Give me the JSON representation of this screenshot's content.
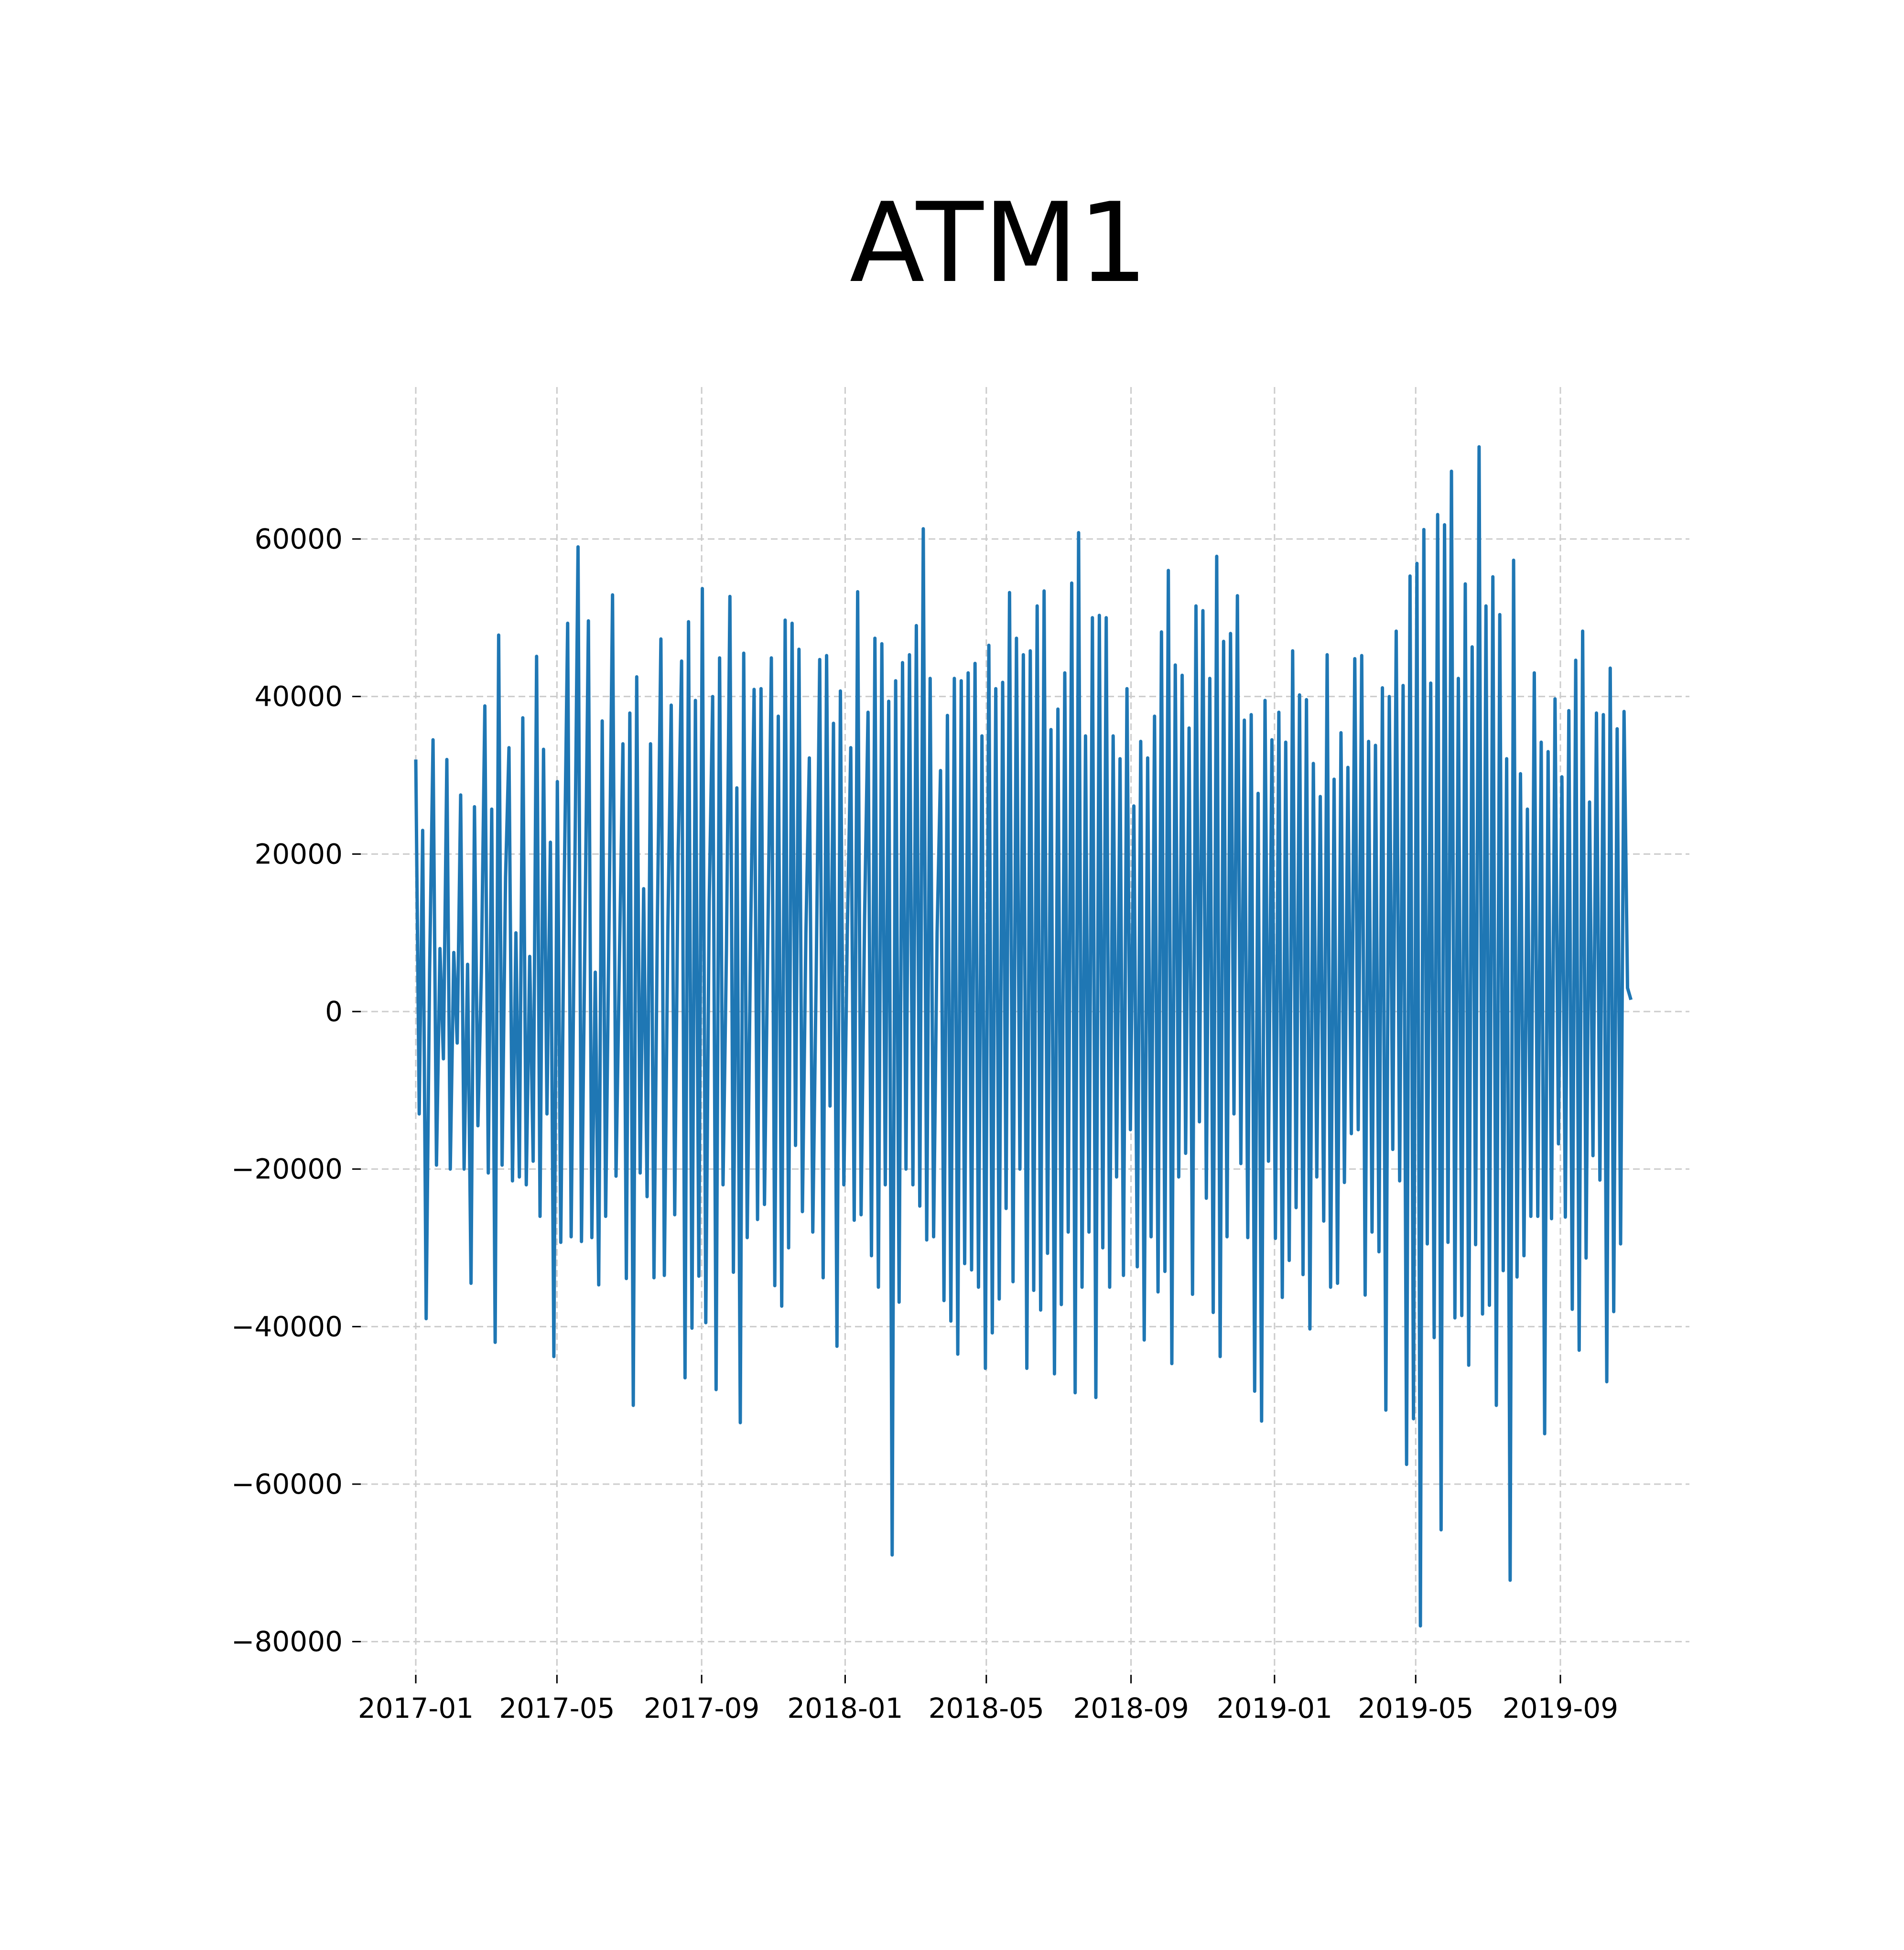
{
  "chart_data": {
    "type": "line",
    "title": "ATM1",
    "xlabel": "",
    "ylabel": "",
    "x_start": "2017-01-01",
    "x_end": "2019-10-31",
    "xlim": [
      "2017-01-01",
      "2019-10-31"
    ],
    "ylim": [
      -85000,
      75000
    ],
    "x_ticks": [
      "2017-01",
      "2017-05",
      "2017-09",
      "2018-01",
      "2018-05",
      "2018-09",
      "2019-01",
      "2019-05",
      "2019-09"
    ],
    "y_ticks": [
      60000,
      40000,
      20000,
      0,
      -20000,
      -40000,
      -60000,
      -80000
    ],
    "y_tick_labels": [
      "60000",
      "40000",
      "20000",
      "0",
      "−20000",
      "−40000",
      "−60000",
      "−80000"
    ],
    "grid": true,
    "legend": "none",
    "series": [
      {
        "color": "#1f77b4",
        "values": [
          32000,
          -13000,
          23000,
          -39000,
          5000,
          34500,
          -19500,
          8000,
          -6000,
          32000,
          -20000,
          7500,
          -4000,
          27500,
          -20000,
          6000,
          -34500,
          26000,
          -14500,
          5000,
          38800,
          -20500,
          25700,
          -42000,
          47800,
          -19500,
          17000,
          33500,
          -21500,
          10000,
          -21000,
          37300,
          -22000,
          7000,
          -19000,
          45100,
          -26000,
          33300,
          -13000,
          21500,
          -43800,
          29200,
          -29300,
          16000,
          49300,
          -28600,
          15000,
          59000,
          -29200,
          10000,
          49600,
          -28700,
          5000,
          -34700,
          36900,
          -26000,
          12000,
          52900,
          -20900,
          7000,
          34000,
          -33900,
          37900,
          -50000,
          42500,
          -20500,
          15600,
          -23500,
          34000,
          -33800,
          12000,
          47300,
          -33500,
          10000,
          38900,
          -25800,
          20000,
          44500,
          -46500,
          49500,
          -40200,
          39500,
          -33600,
          53700,
          -39500,
          14000,
          40000,
          -48000,
          44900,
          -22000,
          8000,
          52700,
          -33100,
          28400,
          -52200,
          45500,
          -28700,
          10000,
          40900,
          -26400,
          41000,
          -24500,
          10000,
          44900,
          -34800,
          37500,
          -37400,
          49700,
          -30000,
          49300,
          -17000,
          46000,
          -25400,
          10000,
          32200,
          -28000,
          5000,
          44700,
          -33800,
          45200,
          -12000,
          36600,
          -42500,
          40700,
          -22000,
          10000,
          33500,
          -26500,
          53300,
          -25800,
          12000,
          38000,
          -31000,
          47400,
          -35000,
          46700,
          -22000,
          39400,
          -69000,
          42000,
          -36900,
          44300,
          -20000,
          45300,
          -22000,
          49000,
          -24700,
          61300,
          -29000,
          42300,
          -28600,
          10000,
          30600,
          -36700,
          37600,
          -39300,
          42300,
          -43500,
          42000,
          -32000,
          43000,
          -32800,
          44200,
          -35000,
          35000,
          -45300,
          46500,
          -40800,
          41000,
          -36500,
          41800,
          -25000,
          53200,
          -34300,
          47400,
          -20000,
          45300,
          -45300,
          45800,
          -35400,
          51500,
          -37900,
          53400,
          -30700,
          35800,
          -46000,
          38400,
          -37200,
          43000,
          -28000,
          54400,
          -48400,
          60800,
          -35000,
          35000,
          -28000,
          50000,
          -49000,
          50300,
          -30000,
          50000,
          -35000,
          35000,
          -21000,
          32100,
          -33500,
          41000,
          -15000,
          26100,
          -32400,
          34300,
          -41700,
          32200,
          -28600,
          37500,
          -35600,
          48200,
          -33000,
          56000,
          -44700,
          44000,
          -21000,
          42700,
          -18000,
          36000,
          -35900,
          51500,
          -14000,
          50900,
          -23700,
          42300,
          -38200,
          57800,
          -43800,
          47000,
          -28600,
          48000,
          -13000,
          52800,
          -19300,
          37000,
          -28700,
          37700,
          -48200,
          27700,
          -52000,
          39500,
          -19000,
          34500,
          -28800,
          38000,
          -36300,
          34200,
          -31600,
          45800,
          -24900,
          40200,
          -33400,
          39600,
          -40300,
          31500,
          -21000,
          27300,
          -26600,
          45300,
          -35000,
          29500,
          -34500,
          35400,
          -21700,
          31000,
          -15500,
          44800,
          -15000,
          45200,
          -36000,
          34300,
          -28000,
          33800,
          -30500,
          41100,
          -50600,
          40000,
          -17500,
          48300,
          -21500,
          41400,
          -57500,
          55300,
          -51700,
          56900,
          -78000,
          61200,
          -29500,
          41700,
          -41400,
          63100,
          -65800,
          61800,
          -29300,
          68600,
          -38900,
          42300,
          -38600,
          54300,
          -44900,
          46300,
          -29600,
          71700,
          -38400,
          51500,
          -37300,
          55200,
          -50000,
          50400,
          -32900,
          32100,
          -72200,
          57300,
          -33700,
          30200,
          -31000,
          25700,
          -26000,
          43000,
          -26000,
          34200,
          -53600,
          33000,
          -26300,
          39700,
          -16800,
          29800,
          -26100,
          38200,
          -37800,
          44600,
          -43000,
          48300,
          -31300,
          26600,
          -18300,
          37900,
          -21400,
          37700,
          -47000,
          43600,
          -38100,
          35900,
          -29500,
          38100,
          3000,
          1500
        ]
      }
    ]
  }
}
